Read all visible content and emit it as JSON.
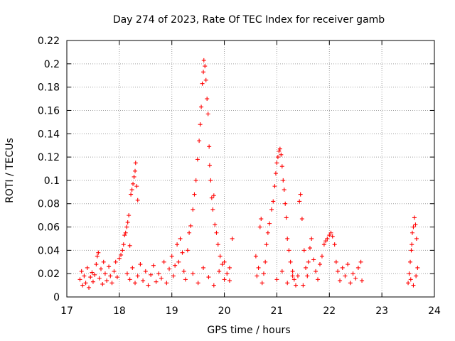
{
  "chart_data": {
    "type": "scatter",
    "title": "Day 274 of 2023, Rate Of TEC Index for receiver gamb",
    "xlabel": "GPS time / hours",
    "ylabel": "ROTI / TECUs",
    "xlim": [
      17,
      24
    ],
    "ylim": [
      0,
      0.22
    ],
    "x_ticks": [
      "17",
      "18",
      "19",
      "20",
      "21",
      "22",
      "23",
      "24"
    ],
    "y_ticks": [
      "0",
      "0.02",
      "0.04",
      "0.06",
      "0.08",
      "0.1",
      "0.12",
      "0.14",
      "0.16",
      "0.18",
      "0.2",
      "0.22"
    ],
    "grid": true,
    "marker": "+",
    "color": "#ff0000",
    "series": [
      {
        "points": [
          [
            17.25,
            0.015
          ],
          [
            17.28,
            0.022
          ],
          [
            17.3,
            0.01
          ],
          [
            17.33,
            0.018
          ],
          [
            17.36,
            0.012
          ],
          [
            17.39,
            0.025
          ],
          [
            17.42,
            0.008
          ],
          [
            17.45,
            0.017
          ],
          [
            17.48,
            0.021
          ],
          [
            17.5,
            0.013
          ],
          [
            17.53,
            0.019
          ],
          [
            17.56,
            0.028
          ],
          [
            17.58,
            0.035
          ],
          [
            17.6,
            0.038
          ],
          [
            17.62,
            0.016
          ],
          [
            17.65,
            0.024
          ],
          [
            17.68,
            0.011
          ],
          [
            17.7,
            0.03
          ],
          [
            17.73,
            0.02
          ],
          [
            17.76,
            0.014
          ],
          [
            17.8,
            0.026
          ],
          [
            17.83,
            0.018
          ],
          [
            17.86,
            0.012
          ],
          [
            17.9,
            0.022
          ],
          [
            17.93,
            0.03
          ],
          [
            17.96,
            0.017
          ],
          [
            18.0,
            0.033
          ],
          [
            18.03,
            0.036
          ],
          [
            18.06,
            0.04
          ],
          [
            18.08,
            0.045
          ],
          [
            18.1,
            0.053
          ],
          [
            18.12,
            0.055
          ],
          [
            18.14,
            0.06
          ],
          [
            18.16,
            0.064
          ],
          [
            18.18,
            0.07
          ],
          [
            18.2,
            0.044
          ],
          [
            18.22,
            0.088
          ],
          [
            18.24,
            0.092
          ],
          [
            18.26,
            0.097
          ],
          [
            18.28,
            0.103
          ],
          [
            18.3,
            0.108
          ],
          [
            18.31,
            0.115
          ],
          [
            18.33,
            0.095
          ],
          [
            18.35,
            0.083
          ],
          [
            18.15,
            0.02
          ],
          [
            18.2,
            0.015
          ],
          [
            18.25,
            0.025
          ],
          [
            18.3,
            0.012
          ],
          [
            18.35,
            0.018
          ],
          [
            18.4,
            0.028
          ],
          [
            18.45,
            0.014
          ],
          [
            18.5,
            0.022
          ],
          [
            18.55,
            0.01
          ],
          [
            18.6,
            0.019
          ],
          [
            18.65,
            0.027
          ],
          [
            18.7,
            0.013
          ],
          [
            18.75,
            0.02
          ],
          [
            18.8,
            0.016
          ],
          [
            18.85,
            0.03
          ],
          [
            18.9,
            0.012
          ],
          [
            18.95,
            0.024
          ],
          [
            19.0,
            0.035
          ],
          [
            19.03,
            0.018
          ],
          [
            19.06,
            0.027
          ],
          [
            19.1,
            0.045
          ],
          [
            19.13,
            0.03
          ],
          [
            19.16,
            0.05
          ],
          [
            19.2,
            0.038
          ],
          [
            19.23,
            0.022
          ],
          [
            19.26,
            0.015
          ],
          [
            19.3,
            0.04
          ],
          [
            19.33,
            0.055
          ],
          [
            19.36,
            0.061
          ],
          [
            19.4,
            0.075
          ],
          [
            19.43,
            0.088
          ],
          [
            19.46,
            0.1
          ],
          [
            19.49,
            0.118
          ],
          [
            19.52,
            0.134
          ],
          [
            19.54,
            0.148
          ],
          [
            19.56,
            0.163
          ],
          [
            19.58,
            0.183
          ],
          [
            19.6,
            0.193
          ],
          [
            19.61,
            0.203
          ],
          [
            19.63,
            0.198
          ],
          [
            19.65,
            0.186
          ],
          [
            19.67,
            0.17
          ],
          [
            19.69,
            0.157
          ],
          [
            19.71,
            0.129
          ],
          [
            19.72,
            0.113
          ],
          [
            19.74,
            0.1
          ],
          [
            19.76,
            0.085
          ],
          [
            19.78,
            0.075
          ],
          [
            19.8,
            0.087
          ],
          [
            19.82,
            0.062
          ],
          [
            19.85,
            0.055
          ],
          [
            19.88,
            0.045
          ],
          [
            19.92,
            0.035
          ],
          [
            19.96,
            0.028
          ],
          [
            20.0,
            0.03
          ],
          [
            20.05,
            0.02
          ],
          [
            20.1,
            0.014
          ],
          [
            20.15,
            0.05
          ],
          [
            19.4,
            0.02
          ],
          [
            19.5,
            0.012
          ],
          [
            19.6,
            0.025
          ],
          [
            19.7,
            0.017
          ],
          [
            19.8,
            0.01
          ],
          [
            19.9,
            0.022
          ],
          [
            20.0,
            0.015
          ],
          [
            20.1,
            0.025
          ],
          [
            20.6,
            0.035
          ],
          [
            20.62,
            0.018
          ],
          [
            20.65,
            0.025
          ],
          [
            20.68,
            0.06
          ],
          [
            20.7,
            0.067
          ],
          [
            20.72,
            0.012
          ],
          [
            20.75,
            0.02
          ],
          [
            20.78,
            0.03
          ],
          [
            20.8,
            0.045
          ],
          [
            20.83,
            0.055
          ],
          [
            20.86,
            0.063
          ],
          [
            20.9,
            0.075
          ],
          [
            20.93,
            0.082
          ],
          [
            20.96,
            0.095
          ],
          [
            20.98,
            0.106
          ],
          [
            21.0,
            0.115
          ],
          [
            21.02,
            0.12
          ],
          [
            21.04,
            0.125
          ],
          [
            21.06,
            0.127
          ],
          [
            21.08,
            0.122
          ],
          [
            21.1,
            0.112
          ],
          [
            21.12,
            0.1
          ],
          [
            21.14,
            0.092
          ],
          [
            21.16,
            0.08
          ],
          [
            21.18,
            0.068
          ],
          [
            21.2,
            0.05
          ],
          [
            21.23,
            0.04
          ],
          [
            21.26,
            0.03
          ],
          [
            21.3,
            0.022
          ],
          [
            21.33,
            0.015
          ],
          [
            21.36,
            0.01
          ],
          [
            21.4,
            0.018
          ],
          [
            21.43,
            0.082
          ],
          [
            21.45,
            0.088
          ],
          [
            21.48,
            0.067
          ],
          [
            21.52,
            0.04
          ],
          [
            21.55,
            0.025
          ],
          [
            21.58,
            0.018
          ],
          [
            21.6,
            0.03
          ],
          [
            21.63,
            0.042
          ],
          [
            21.66,
            0.05
          ],
          [
            21.7,
            0.032
          ],
          [
            21.74,
            0.022
          ],
          [
            21.78,
            0.015
          ],
          [
            21.82,
            0.028
          ],
          [
            21.86,
            0.035
          ],
          [
            21.9,
            0.045
          ],
          [
            21.93,
            0.048
          ],
          [
            21.96,
            0.05
          ],
          [
            22.0,
            0.053
          ],
          [
            22.03,
            0.055
          ],
          [
            22.06,
            0.052
          ],
          [
            22.1,
            0.045
          ],
          [
            22.13,
            0.03
          ],
          [
            22.16,
            0.022
          ],
          [
            22.2,
            0.014
          ],
          [
            22.25,
            0.025
          ],
          [
            22.3,
            0.018
          ],
          [
            22.35,
            0.028
          ],
          [
            22.4,
            0.012
          ],
          [
            22.45,
            0.02
          ],
          [
            22.5,
            0.016
          ],
          [
            22.55,
            0.025
          ],
          [
            22.6,
            0.03
          ],
          [
            22.62,
            0.014
          ],
          [
            21.0,
            0.015
          ],
          [
            21.1,
            0.022
          ],
          [
            21.2,
            0.012
          ],
          [
            21.3,
            0.018
          ],
          [
            21.5,
            0.01
          ],
          [
            23.5,
            0.012
          ],
          [
            23.52,
            0.02
          ],
          [
            23.54,
            0.03
          ],
          [
            23.56,
            0.04
          ],
          [
            23.57,
            0.045
          ],
          [
            23.58,
            0.055
          ],
          [
            23.6,
            0.06
          ],
          [
            23.62,
            0.068
          ],
          [
            23.64,
            0.062
          ],
          [
            23.66,
            0.05
          ],
          [
            23.68,
            0.025
          ],
          [
            23.55,
            0.015
          ],
          [
            23.6,
            0.01
          ],
          [
            23.65,
            0.018
          ]
        ]
      }
    ]
  }
}
